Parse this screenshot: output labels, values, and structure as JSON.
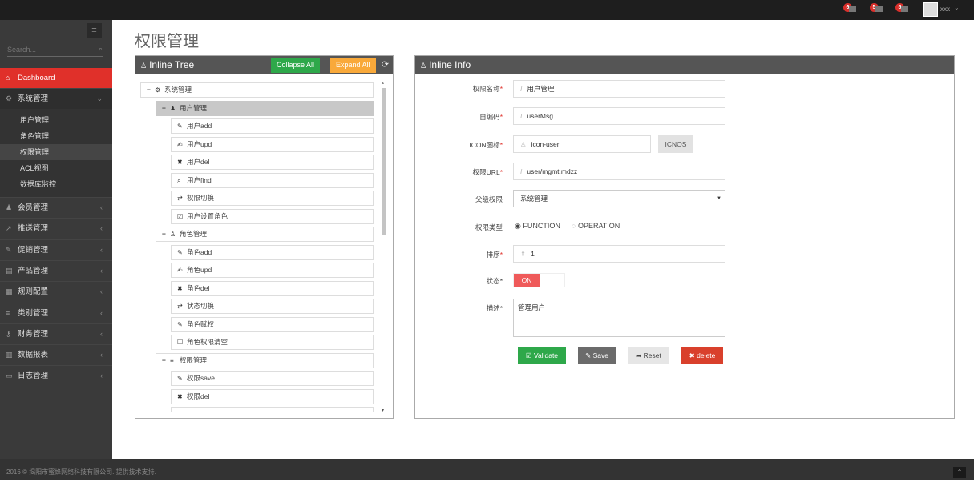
{
  "topbar": {
    "notifications": [
      {
        "count": "6",
        "icon": "bell-icon"
      },
      {
        "count": "5",
        "icon": "envelope-icon"
      },
      {
        "count": "5",
        "icon": "tasks-icon"
      }
    ],
    "username": "xxx"
  },
  "sidebar": {
    "search_placeholder": "Search...",
    "dashboard": "Dashboard",
    "system": "系统管理",
    "sub_items": [
      "用户管理",
      "角色管理",
      "权限管理",
      "ACL视图",
      "数据库监控"
    ],
    "menus": [
      {
        "label": "会员管理",
        "icon": "user-icon"
      },
      {
        "label": "推送管理",
        "icon": "share-icon"
      },
      {
        "label": "促销管理",
        "icon": "pencil-icon"
      },
      {
        "label": "产品管理",
        "icon": "box-icon"
      },
      {
        "label": "规则配置",
        "icon": "list-icon"
      },
      {
        "label": "类别管理",
        "icon": "bars-icon"
      },
      {
        "label": "财务管理",
        "icon": "key-icon"
      },
      {
        "label": "数据报表",
        "icon": "chart-icon"
      },
      {
        "label": "日志管理",
        "icon": "card-icon"
      }
    ]
  },
  "page": {
    "title": "权限管理"
  },
  "tree": {
    "title": "Inline Tree",
    "collapse_all": "Collapse All",
    "expand_all": "Expand All",
    "nodes": [
      {
        "label": "系统管理",
        "level": 0,
        "icon": "cogs-icon",
        "minus": true
      },
      {
        "label": "用户管理",
        "level": 1,
        "icon": "user-icon",
        "minus": true,
        "selected": true
      },
      {
        "label": "用户add",
        "level": 2,
        "icon": "pencil-icon"
      },
      {
        "label": "用户upd",
        "level": 2,
        "icon": "edit-icon"
      },
      {
        "label": "用户del",
        "level": 2,
        "icon": "close-icon"
      },
      {
        "label": "用户find",
        "level": 2,
        "icon": "search-icon"
      },
      {
        "label": "权限切换",
        "level": 2,
        "icon": "retweet-icon"
      },
      {
        "label": "用户设置角色",
        "level": 2,
        "icon": "check-square-icon"
      },
      {
        "label": "角色管理",
        "level": 1,
        "icon": "sitemap-icon",
        "minus": true
      },
      {
        "label": "角色add",
        "level": 2,
        "icon": "pencil-icon"
      },
      {
        "label": "角色upd",
        "level": 2,
        "icon": "edit-icon"
      },
      {
        "label": "角色del",
        "level": 2,
        "icon": "close-icon"
      },
      {
        "label": "状态切换",
        "level": 2,
        "icon": "retweet-icon"
      },
      {
        "label": "角色赋权",
        "level": 2,
        "icon": "pencil-icon"
      },
      {
        "label": "角色权限清空",
        "level": 2,
        "icon": "square-icon"
      },
      {
        "label": "权限管理",
        "level": 1,
        "icon": "bars-icon",
        "minus": true
      },
      {
        "label": "权限save",
        "level": 2,
        "icon": "pencil-icon"
      },
      {
        "label": "权限del",
        "level": 2,
        "icon": "close-icon"
      },
      {
        "label": "operation",
        "level": 2,
        "icon": "edit-icon"
      }
    ]
  },
  "info": {
    "title": "Inline Info",
    "name_label": "权限名称",
    "name_value": "用户管理",
    "code_label": "自编码",
    "code_value": "userMsg",
    "icon_label": "ICON图标",
    "icon_value": "icon-user",
    "icons_button": "ICNOS",
    "url_label": "权限URL",
    "url_value": "user/mgmt.mdzz",
    "parent_label": "父级权限",
    "parent_value": "系统管理",
    "type_label": "权限类型",
    "type_options": [
      "FUNCTION",
      "OPERATION"
    ],
    "type_selected": "FUNCTION",
    "order_label": "排序",
    "order_value": "1",
    "status_label": "状态",
    "status_value": "ON",
    "desc_label": "描述",
    "desc_value": "管理用户",
    "validate": "Validate",
    "save": "Save",
    "reset": "Reset",
    "delete": "delete"
  },
  "colors": {
    "accent": "#e0302a",
    "green": "#2ea84a",
    "orange": "#f9a93a",
    "gray_btn": "#6b6b6b",
    "toggle_on": "#ef5a5a"
  },
  "footer": {
    "text": "2016 © 揭阳市蜜蜂网络科技有限公司. 提供技术支持."
  }
}
